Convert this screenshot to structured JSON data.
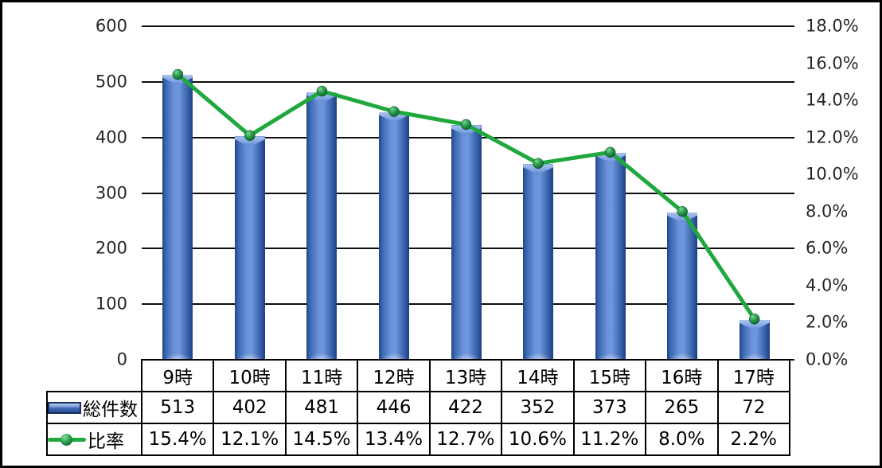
{
  "chart_data": {
    "type": "combo",
    "categories": [
      "9時",
      "10時",
      "11時",
      "12時",
      "13時",
      "14時",
      "15時",
      "16時",
      "17時"
    ],
    "series": [
      {
        "name": "総件数",
        "type": "bar",
        "axis": "left",
        "color": "#4472C4",
        "values": [
          513,
          402,
          481,
          446,
          422,
          352,
          373,
          265,
          72
        ]
      },
      {
        "name": "比率",
        "type": "line",
        "axis": "right",
        "color": "#1FA83E",
        "marker_color": "#1E9143",
        "unit": "%",
        "values": [
          15.4,
          12.1,
          14.5,
          13.4,
          12.7,
          10.6,
          11.2,
          8.0,
          2.2
        ]
      }
    ],
    "left_axis": {
      "min": 0,
      "max": 600,
      "step": 100,
      "labels": [
        "0",
        "100",
        "200",
        "300",
        "400",
        "500",
        "600"
      ]
    },
    "right_axis": {
      "min": 0,
      "max": 18,
      "step": 2,
      "labels": [
        "0.0%",
        "2.0%",
        "4.0%",
        "6.0%",
        "8.0%",
        "10.0%",
        "12.0%",
        "14.0%",
        "16.0%",
        "18.0%"
      ]
    },
    "grid": true,
    "legend_position": "table-left",
    "table": {
      "rows": [
        {
          "header": "総件数",
          "cells": [
            "513",
            "402",
            "481",
            "446",
            "422",
            "352",
            "373",
            "265",
            "72"
          ]
        },
        {
          "header": "比率",
          "cells": [
            "15.4%",
            "12.1%",
            "14.5%",
            "13.4%",
            "12.7%",
            "10.6%",
            "11.2%",
            "8.0%",
            "2.2%"
          ]
        }
      ]
    }
  },
  "colors": {
    "bar_main": "#4472C4",
    "bar_light": "#85A9E2",
    "bar_dark": "#2B5197",
    "bar_cap": "#A4BEEC",
    "line": "#1FA83E",
    "marker_dark": "#0E5A28",
    "marker_light": "#7FD492",
    "grid": "#0D0D0D",
    "axis_text": "#262626",
    "table_text": "#000000",
    "background": "#FFFFFF",
    "border": "#000000"
  }
}
